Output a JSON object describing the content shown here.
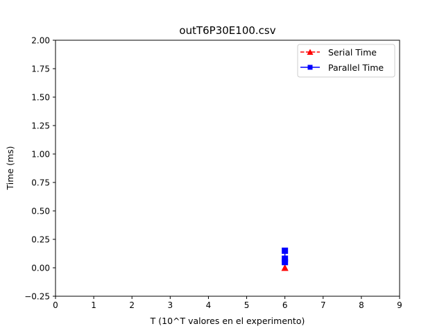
{
  "chart_data": {
    "type": "line",
    "title": "outT6P30E100.csv",
    "xlabel": "T (10^T valores en el experimento)",
    "ylabel": "Time (ms)",
    "xlim": [
      0,
      9
    ],
    "ylim": [
      -0.25,
      2.0
    ],
    "xticks": [
      "0",
      "1",
      "2",
      "3",
      "4",
      "5",
      "6",
      "7",
      "8",
      "9"
    ],
    "yticks": [
      "−0.25",
      "0.00",
      "0.25",
      "0.50",
      "0.75",
      "1.00",
      "1.25",
      "1.50",
      "1.75",
      "2.00"
    ],
    "grid": false,
    "legend_position": "top-right",
    "series": [
      {
        "name": "Serial Time",
        "color": "#ff0000",
        "line_style": "dashed",
        "marker": "triangle",
        "points": [
          [
            6,
            0.0
          ],
          [
            6,
            0.0
          ],
          [
            6,
            0.0
          ]
        ]
      },
      {
        "name": "Parallel Time",
        "color": "#0000ff",
        "line_style": "solid",
        "marker": "square",
        "points": [
          [
            6,
            0.05
          ],
          [
            6,
            0.08
          ],
          [
            6,
            0.15
          ]
        ]
      }
    ]
  }
}
